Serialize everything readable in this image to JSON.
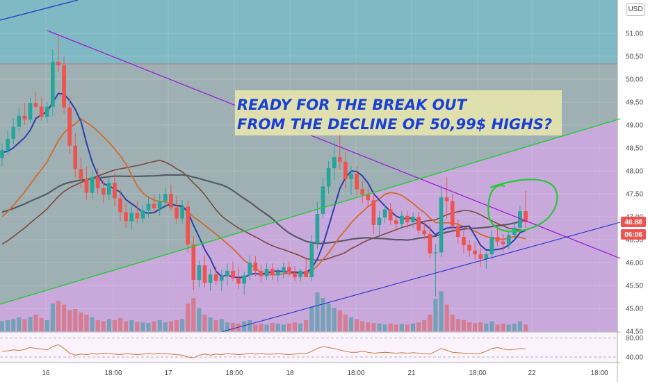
{
  "currency_button": "USD",
  "annotation": {
    "line1": "READY FOR THE BREAK OUT",
    "line2": "FROM THE DECLINE OF 50,99$ HIGHS?"
  },
  "price_badges": {
    "last": "46.88",
    "countdown": "06:06"
  },
  "colors": {
    "bull": "#26a69a",
    "bear": "#ef5350",
    "vol_bull": "#64a0b0",
    "vol_bear": "#d77584",
    "ma_fast": "#2b3fa8",
    "ma_orange": "#d2692a",
    "ma_slow": "#7a4a3a",
    "ma_grey": "#555a66",
    "ma_tan": "#c27b3a",
    "resistance_line": "#9b1ed6",
    "green_line": "#22cc33",
    "support_line": "#2233cc",
    "annotation_text": "#1a3fd6",
    "annotation_box": "#e6e6ad"
  },
  "chart_data": [
    {
      "type": "candlestick",
      "y_axis_ticks": [
        "51.00",
        "50.50",
        "50.00",
        "49.50",
        "49.00",
        "48.50",
        "48.00",
        "47.50",
        "47.00",
        "46.50",
        "46.00",
        "45.50",
        "45.00",
        "44.50"
      ],
      "x_axis_ticks": [
        "16",
        "18:00",
        "17",
        "18:00",
        "18",
        "18:00",
        "21",
        "18:00",
        "22",
        "18:00"
      ],
      "ylim": [
        44.5,
        51.2
      ],
      "ohlc": [
        [
          48.28,
          48.6,
          48.1,
          48.45
        ],
        [
          48.45,
          48.88,
          48.36,
          48.7
        ],
        [
          48.7,
          49.14,
          48.58,
          48.96
        ],
        [
          48.96,
          49.38,
          48.86,
          49.2
        ],
        [
          49.2,
          49.48,
          49.0,
          49.12
        ],
        [
          49.12,
          49.6,
          49.06,
          49.48
        ],
        [
          49.48,
          49.72,
          49.36,
          49.4
        ],
        [
          49.4,
          49.6,
          49.1,
          49.18
        ],
        [
          49.18,
          49.5,
          49.05,
          49.4
        ],
        [
          49.4,
          50.65,
          49.2,
          50.38
        ],
        [
          50.38,
          50.99,
          50.16,
          50.3
        ],
        [
          50.3,
          50.5,
          49.25,
          49.38
        ],
        [
          49.38,
          49.62,
          48.38,
          48.55
        ],
        [
          48.55,
          48.82,
          47.86,
          48.04
        ],
        [
          48.04,
          48.3,
          47.62,
          47.82
        ],
        [
          47.82,
          48.1,
          47.36,
          47.52
        ],
        [
          47.52,
          48.02,
          47.4,
          47.86
        ],
        [
          47.86,
          48.06,
          47.48,
          47.62
        ],
        [
          47.62,
          47.8,
          47.3,
          47.48
        ],
        [
          47.48,
          47.86,
          47.36,
          47.74
        ],
        [
          47.74,
          47.96,
          47.22,
          47.4
        ],
        [
          47.4,
          47.6,
          46.9,
          47.1
        ],
        [
          47.1,
          47.3,
          46.76,
          46.9
        ],
        [
          46.9,
          47.22,
          46.72,
          47.08
        ],
        [
          47.08,
          47.34,
          46.86,
          46.96
        ],
        [
          46.96,
          47.26,
          46.84,
          47.14
        ],
        [
          47.14,
          47.42,
          46.98,
          47.28
        ],
        [
          47.28,
          47.5,
          47.06,
          47.18
        ],
        [
          47.18,
          47.5,
          47.02,
          47.34
        ],
        [
          47.34,
          47.62,
          47.18,
          47.5
        ],
        [
          47.5,
          47.7,
          47.12,
          47.2
        ],
        [
          47.2,
          47.46,
          46.84,
          46.96
        ],
        [
          46.96,
          47.36,
          46.84,
          47.22
        ],
        [
          47.22,
          47.36,
          46.22,
          46.4
        ],
        [
          46.4,
          46.58,
          45.4,
          45.62
        ],
        [
          45.62,
          46.04,
          45.46,
          45.94
        ],
        [
          45.94,
          46.16,
          45.46,
          45.56
        ],
        [
          45.56,
          45.86,
          45.38,
          45.74
        ],
        [
          45.74,
          45.92,
          45.5,
          45.6
        ],
        [
          45.6,
          45.84,
          45.38,
          45.7
        ],
        [
          45.7,
          45.98,
          45.5,
          45.82
        ],
        [
          45.82,
          46.02,
          45.6,
          45.66
        ],
        [
          45.66,
          45.9,
          45.42,
          45.54
        ],
        [
          45.54,
          45.8,
          45.3,
          45.72
        ],
        [
          45.72,
          46.16,
          45.62,
          46.0
        ],
        [
          46.0,
          46.14,
          45.7,
          45.82
        ],
        [
          45.82,
          45.96,
          45.56,
          45.7
        ],
        [
          45.7,
          45.98,
          45.62,
          45.86
        ],
        [
          45.86,
          45.98,
          45.62,
          45.72
        ],
        [
          45.72,
          45.88,
          45.58,
          45.8
        ],
        [
          45.8,
          46.0,
          45.66,
          45.9
        ],
        [
          45.9,
          46.02,
          45.7,
          45.78
        ],
        [
          45.78,
          45.92,
          45.6,
          45.68
        ],
        [
          45.68,
          45.86,
          45.58,
          45.82
        ],
        [
          45.82,
          46.1,
          45.72,
          45.68
        ],
        [
          45.68,
          46.6,
          45.6,
          46.42
        ],
        [
          46.42,
          47.32,
          46.3,
          47.06
        ],
        [
          47.06,
          47.86,
          46.96,
          47.66
        ],
        [
          47.66,
          48.22,
          47.5,
          48.06
        ],
        [
          48.06,
          48.64,
          47.8,
          48.3
        ],
        [
          48.3,
          48.9,
          48.02,
          48.2
        ],
        [
          48.2,
          48.42,
          47.62,
          47.82
        ],
        [
          47.82,
          48.1,
          47.48,
          47.94
        ],
        [
          47.94,
          48.1,
          47.46,
          47.6
        ],
        [
          47.6,
          47.78,
          47.3,
          47.48
        ],
        [
          47.48,
          47.62,
          47.24,
          47.36
        ],
        [
          47.36,
          47.56,
          46.62,
          46.82
        ],
        [
          46.82,
          47.12,
          46.6,
          46.98
        ],
        [
          46.98,
          47.28,
          46.86,
          47.16
        ],
        [
          47.16,
          47.3,
          46.82,
          46.92
        ],
        [
          46.92,
          47.04,
          46.68,
          46.84
        ],
        [
          46.84,
          47.12,
          46.74,
          47.02
        ],
        [
          47.02,
          47.12,
          46.76,
          46.88
        ],
        [
          46.88,
          47.1,
          46.76,
          47.0
        ],
        [
          47.0,
          47.1,
          46.6,
          46.7
        ],
        [
          46.7,
          46.88,
          46.5,
          46.62
        ],
        [
          46.62,
          46.84,
          46.1,
          46.2
        ],
        [
          46.2,
          46.4,
          45.26,
          46.22
        ],
        [
          46.22,
          47.7,
          46.12,
          47.42
        ],
        [
          47.42,
          47.86,
          46.96,
          47.34
        ],
        [
          47.34,
          47.5,
          46.66,
          46.8
        ],
        [
          46.8,
          46.94,
          46.42,
          46.56
        ],
        [
          46.56,
          46.7,
          46.2,
          46.38
        ],
        [
          46.38,
          46.5,
          46.12,
          46.26
        ],
        [
          46.26,
          46.44,
          46.06,
          46.18
        ],
        [
          46.18,
          46.32,
          45.9,
          46.08
        ],
        [
          46.08,
          46.22,
          45.86,
          46.18
        ],
        [
          46.18,
          46.7,
          46.08,
          46.56
        ],
        [
          46.56,
          46.8,
          46.36,
          46.46
        ],
        [
          46.46,
          46.62,
          46.24,
          46.4
        ],
        [
          46.4,
          46.7,
          46.3,
          46.6
        ],
        [
          46.6,
          46.86,
          46.5,
          46.76
        ],
        [
          46.76,
          47.24,
          46.66,
          47.12
        ],
        [
          47.12,
          47.56,
          46.76,
          46.88
        ]
      ],
      "volume": [
        0.18,
        0.2,
        0.22,
        0.25,
        0.22,
        0.26,
        0.3,
        0.24,
        0.2,
        0.5,
        0.55,
        0.48,
        0.38,
        0.4,
        0.34,
        0.3,
        0.25,
        0.2,
        0.18,
        0.22,
        0.2,
        0.24,
        0.18,
        0.2,
        0.17,
        0.16,
        0.15,
        0.18,
        0.2,
        0.16,
        0.18,
        0.2,
        0.22,
        0.5,
        0.6,
        0.42,
        0.3,
        0.25,
        0.2,
        0.22,
        0.16,
        0.15,
        0.14,
        0.18,
        0.2,
        0.12,
        0.14,
        0.12,
        0.15,
        0.14,
        0.12,
        0.14,
        0.16,
        0.14,
        0.2,
        0.45,
        0.7,
        0.6,
        0.5,
        0.42,
        0.38,
        0.3,
        0.25,
        0.22,
        0.18,
        0.16,
        0.15,
        0.14,
        0.12,
        0.14,
        0.12,
        0.13,
        0.12,
        0.14,
        0.16,
        0.2,
        0.3,
        0.58,
        0.72,
        0.48,
        0.3,
        0.22,
        0.2,
        0.16,
        0.15,
        0.16,
        0.14,
        0.18,
        0.12,
        0.14,
        0.12,
        0.14,
        0.18,
        0.12
      ]
    },
    {
      "type": "line",
      "name": "oscillator",
      "y_axis_ticks": [
        "80.00",
        "40.00"
      ],
      "ylim": [
        30,
        90
      ],
      "values": [
        52,
        53,
        55,
        54,
        56,
        60,
        58,
        57,
        55,
        62,
        66,
        58,
        48,
        44,
        46,
        45,
        47,
        46,
        48,
        47,
        46,
        45,
        47,
        46,
        45,
        46,
        47,
        46,
        48,
        47,
        46,
        45,
        44,
        40,
        38,
        44,
        46,
        44,
        46,
        45,
        47,
        46,
        45,
        46,
        48,
        46,
        47,
        46,
        46,
        47,
        46,
        45,
        46,
        48,
        47,
        52,
        58,
        62,
        60,
        58,
        55,
        52,
        50,
        50,
        52,
        50,
        48,
        49,
        50,
        49,
        48,
        49,
        48,
        49,
        48,
        47,
        46,
        52,
        58,
        54,
        50,
        49,
        48,
        48,
        47,
        48,
        52,
        58,
        60,
        57,
        55,
        56,
        58,
        57
      ]
    }
  ]
}
